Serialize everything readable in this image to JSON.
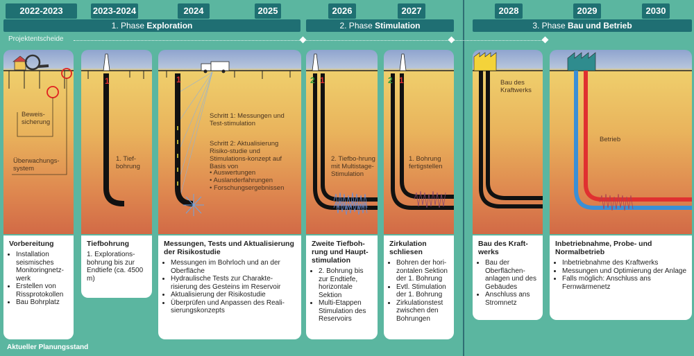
{
  "years": [
    "2022-2023",
    "2023-2024",
    "2024",
    "2025",
    "2026",
    "2027",
    "2028",
    "2029",
    "2030"
  ],
  "phases": [
    {
      "prefix": "1. Phase ",
      "bold": "Exploration"
    },
    {
      "prefix": "2. Phase ",
      "bold": "Stimulation"
    },
    {
      "prefix": "3. Phase ",
      "bold": "Bau und Betrieb"
    }
  ],
  "projektentscheide": "Projektentscheide",
  "footer": "Aktueller Planungsstand",
  "well_numbers": {
    "one": "1",
    "two": "2"
  },
  "colors": {
    "background": "#5bb6a0",
    "header": "#1f7072",
    "well_black": "#111111",
    "well_blue": "#3a8fd6",
    "well_red": "#e03030",
    "well_green": "#2f9a3a",
    "factory_yellow": "#f4d33a",
    "factory_teal": "#2f8c8e"
  },
  "cards": [
    {
      "title": "Vorbereitung",
      "items": [
        "Installation seismisches Monitoringnetz-werk",
        "Erstellen von Rissprotokollen",
        "Bau Bohrplatz"
      ],
      "annotations": [
        "Beweis-sicherung",
        "Überwachungs-system"
      ]
    },
    {
      "title": "Tiefbohrung",
      "items": [
        "1. Explorations-bohrung bis zur Endtiefe (ca. 4500 m)"
      ],
      "annotations": [
        "1. Tief-bohrung"
      ]
    },
    {
      "title": "Messungen, Tests und Aktualisierung der Risikostudie",
      "items": [
        "Messungen im Bohrloch und an der Oberfläche",
        "Hydraulische Tests zur Charakte-risierung des Gesteins im Reservoir",
        "Aktualisierung der Risikostudie",
        "Überprüfen und Anpassen des Reali-sierungskonzepts"
      ],
      "annotations": [
        "Schritt 1: Messungen und Test-stimulation",
        "Schritt 2: Aktualisierung Risiko-studie und Stimulations-konzept auf Basis von"
      ],
      "sub_items": [
        "Auswertungen",
        "Auslanderfahrungen",
        "Forschungsergebnissen"
      ]
    },
    {
      "title": "Zweite Tiefboh-rung und Haupt-stimulation",
      "items": [
        "2. Bohrung bis zur Endtiefe, horizontale Sektion",
        "Multi-Etappen Stimulation des Reservoirs"
      ],
      "annotations": [
        "2. Tiefbo-hrung mit Multistage-Stimulation"
      ]
    },
    {
      "title": "Zirkulation schliesen",
      "items": [
        "Bohren der hori-zontalen Sektion der 1. Bohrung",
        "Evtl. Stimulation der 1. Bohrung",
        "Zirkulationstest zwischen den Bohrungen"
      ],
      "annotations": [
        "1. Bohrung fertigstellen"
      ]
    },
    {
      "title": "Bau des Kraft-werks",
      "items": [
        "Bau der Oberflächen-anlagen und des Gebäudes",
        "Anschluss ans Stromnetz"
      ],
      "annotations": [
        "Bau des Kraftwerks"
      ]
    },
    {
      "title": "Inbetriebnahme, Probe- und Normalbetrieb",
      "items": [
        "Inbetriebnahme des Kraftwerks",
        "Messungen und Optimierung der Anlage",
        "Falls möglich: Anschluss ans Fernwärmenetz"
      ],
      "annotations": [
        "Betrieb"
      ]
    }
  ]
}
